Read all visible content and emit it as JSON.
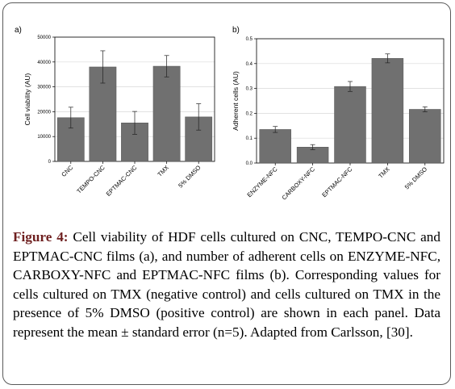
{
  "chart_data": [
    {
      "panel": "a)",
      "type": "bar",
      "ylabel": "Cell viability (AU)",
      "ylim": [
        0,
        50000
      ],
      "yticks": [
        0,
        10000,
        20000,
        30000,
        40000,
        50000
      ],
      "grid": true,
      "categories": [
        "CNC",
        "TEMPO-CNC",
        "EPTMAC-CNC",
        "TMX",
        "5% DMSO"
      ],
      "values": [
        17600,
        38000,
        15500,
        38300,
        17900
      ],
      "errors": [
        4200,
        6500,
        4600,
        4300,
        5300
      ],
      "bar_color": "#707070"
    },
    {
      "panel": "b)",
      "type": "bar",
      "ylabel": "Adherent cells (AU)",
      "ylim": [
        0,
        0.5
      ],
      "yticks": [
        0.0,
        0.1,
        0.2,
        0.3,
        0.4,
        0.5
      ],
      "grid": true,
      "categories": [
        "ENZYME-NFC",
        "CARBOXY-NFC",
        "EPTMAC-NFC",
        "TMX",
        "5% DMSO"
      ],
      "values": [
        0.135,
        0.064,
        0.308,
        0.421,
        0.216
      ],
      "errors": [
        0.012,
        0.01,
        0.02,
        0.018,
        0.01
      ],
      "bar_color": "#707070"
    }
  ],
  "caption": {
    "label": "Figure 4:",
    "text": " Cell viability of HDF cells cultured on CNC, TEMPO-CNC and EPTMAC-CNC films (a), and number of adherent cells on ENZYME-NFC, CARBOXY-NFC and EPTMAC-NFC films (b). Corresponding values for cells cultured on TMX (negative control) and cells cultured on TMX in the presence of 5% DMSO (positive control) are shown in each panel. Data represent the mean ± standard error (n=5). Adapted from Carlsson, [30]."
  }
}
